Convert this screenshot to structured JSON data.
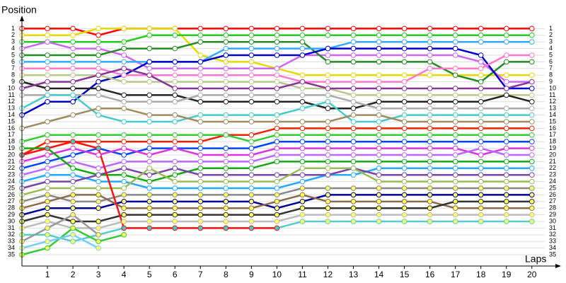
{
  "chart_data": {
    "type": "line",
    "y_label": "Position",
    "x_label": "Laps",
    "x": [
      0,
      1,
      2,
      3,
      4,
      5,
      6,
      7,
      8,
      9,
      10,
      11,
      12,
      13,
      14,
      15,
      16,
      17,
      18,
      19,
      20
    ],
    "xlim": [
      0,
      20.7
    ],
    "xticks": [
      1,
      2,
      3,
      4,
      5,
      6,
      7,
      8,
      9,
      10,
      11,
      12,
      13,
      14,
      15,
      16,
      17,
      18,
      19,
      20
    ],
    "ylim": [
      0,
      36.7
    ],
    "inverted": true,
    "grid": true,
    "yticks": [
      1,
      2,
      3,
      4,
      5,
      6,
      7,
      8,
      9,
      10,
      11,
      12,
      13,
      14,
      15,
      16,
      17,
      18,
      19,
      20,
      21,
      22,
      23,
      24,
      25,
      26,
      27,
      28,
      29,
      30,
      31,
      32,
      33,
      34,
      35
    ],
    "series": [
      {
        "color": "#ff0000",
        "values": [
          1,
          1,
          1,
          2,
          1,
          1,
          1,
          1,
          1,
          1,
          1,
          1,
          1,
          1,
          1,
          1,
          1,
          1,
          1,
          1,
          1
        ]
      },
      {
        "color": "#e8d800",
        "values": [
          2,
          2,
          2,
          1,
          1,
          1,
          1,
          5,
          6,
          6,
          7,
          8,
          8,
          8,
          8,
          8,
          8,
          8,
          8,
          8,
          8
        ]
      },
      {
        "color": "#22cc22",
        "values": [
          3,
          3,
          3,
          3,
          3,
          2,
          2,
          2,
          2,
          2,
          2,
          2,
          2,
          2,
          2,
          2,
          2,
          2,
          2,
          2,
          2
        ]
      },
      {
        "color": "#cc66ee",
        "values": [
          4,
          3,
          4,
          4,
          5,
          7,
          7,
          7,
          7,
          7,
          7,
          5,
          5,
          5,
          5,
          5,
          5,
          5,
          6,
          9,
          9
        ]
      },
      {
        "color": "#228b22",
        "values": [
          5,
          5,
          5,
          5,
          4,
          4,
          4,
          3,
          3,
          3,
          3,
          3,
          6,
          6,
          6,
          6,
          6,
          8,
          9,
          6,
          6
        ]
      },
      {
        "color": "#33aaff",
        "values": [
          6,
          6,
          6,
          6,
          6,
          6,
          6,
          6,
          4,
          4,
          4,
          4,
          4,
          3,
          3,
          3,
          3,
          3,
          3,
          3,
          3
        ]
      },
      {
        "color": "#0000cc",
        "values": [
          14,
          12,
          12,
          9,
          8,
          6,
          6,
          6,
          5,
          5,
          5,
          5,
          4,
          4,
          4,
          4,
          4,
          4,
          5,
          10,
          10
        ]
      },
      {
        "color": "#ff77cc",
        "values": [
          7,
          7,
          7,
          7,
          8,
          8,
          8,
          8,
          8,
          8,
          8,
          9,
          9,
          9,
          9,
          9,
          7,
          7,
          7,
          5,
          5
        ]
      },
      {
        "color": "#b8c88a",
        "values": [
          8,
          8,
          8,
          8,
          9,
          9,
          9,
          9,
          9,
          9,
          9,
          10,
          10,
          11,
          11,
          11,
          11,
          11,
          11,
          11,
          11
        ]
      },
      {
        "color": "#222222",
        "values": [
          9,
          10,
          10,
          10,
          11,
          11,
          11,
          12,
          12,
          12,
          12,
          12,
          13,
          13,
          12,
          12,
          12,
          12,
          12,
          11,
          12
        ]
      },
      {
        "color": "#883399",
        "values": [
          10,
          9,
          9,
          8,
          7,
          8,
          10,
          10,
          10,
          10,
          10,
          9,
          10,
          10,
          10,
          10,
          10,
          10,
          10,
          10,
          9
        ]
      },
      {
        "color": "#aaaaaa",
        "values": [
          11,
          11,
          11,
          11,
          12,
          12,
          12,
          11,
          11,
          11,
          11,
          11,
          11,
          12,
          13,
          13,
          13,
          13,
          13,
          13,
          13
        ]
      },
      {
        "color": "#44cccc",
        "values": [
          13,
          11,
          11,
          14,
          15,
          15,
          15,
          14,
          14,
          14,
          14,
          13,
          12,
          15,
          15,
          14,
          14,
          14,
          14,
          14,
          14
        ]
      },
      {
        "color": "#a08a60",
        "values": [
          16,
          15,
          14,
          13,
          13,
          14,
          14,
          15,
          15,
          15,
          15,
          15,
          15,
          14,
          14,
          15,
          15,
          15,
          15,
          15,
          15
        ]
      },
      {
        "color": "#ee2200",
        "values": [
          20,
          18,
          18,
          18,
          18,
          18,
          18,
          18,
          17,
          17,
          16,
          16,
          16,
          16,
          16,
          16,
          16,
          16,
          16,
          16,
          16
        ]
      },
      {
        "color": "#33cc33",
        "values": [
          18,
          17,
          17,
          17,
          17,
          17,
          17,
          17,
          17,
          18,
          17,
          17,
          17,
          17,
          17,
          17,
          17,
          17,
          17,
          17,
          17
        ]
      },
      {
        "color": "#0044ff",
        "values": [
          22,
          21,
          20,
          19,
          20,
          19,
          19,
          19,
          19,
          19,
          18,
          18,
          18,
          18,
          18,
          18,
          18,
          18,
          18,
          18,
          18
        ]
      },
      {
        "color": "#dd33dd",
        "values": [
          21,
          20,
          19,
          20,
          19,
          20,
          19,
          20,
          20,
          20,
          19,
          19,
          19,
          19,
          19,
          19,
          19,
          19,
          20,
          19,
          19
        ]
      },
      {
        "color": "#bb66ff",
        "values": [
          23,
          22,
          21,
          22,
          21,
          21,
          21,
          21,
          21,
          21,
          20,
          20,
          20,
          20,
          20,
          20,
          20,
          20,
          19,
          20,
          20
        ]
      },
      {
        "color": "#11aa11",
        "values": [
          19,
          19,
          22,
          23,
          23,
          24,
          23,
          22,
          22,
          22,
          21,
          21,
          21,
          21,
          21,
          21,
          21,
          21,
          21,
          21,
          21
        ]
      },
      {
        "color": "#22aaff",
        "values": [
          24,
          23,
          23,
          24,
          24,
          25,
          25,
          25,
          25,
          25,
          25,
          24,
          23,
          23,
          22,
          22,
          22,
          22,
          22,
          22,
          22
        ]
      },
      {
        "color": "#7744aa",
        "values": [
          25,
          24,
          24,
          23,
          22,
          23,
          22,
          23,
          23,
          23,
          23,
          23,
          23,
          22,
          23,
          23,
          23,
          23,
          23,
          23,
          23
        ]
      },
      {
        "color": "#99bb55",
        "values": [
          26,
          25,
          25,
          25,
          25,
          22,
          24,
          24,
          24,
          24,
          24,
          22,
          22,
          22,
          24,
          24,
          24,
          24,
          24,
          24,
          24
        ]
      },
      {
        "color": "#888888",
        "values": [
          27,
          26,
          27,
          27,
          26,
          26,
          26,
          26,
          26,
          26,
          26,
          25,
          25,
          25,
          25,
          25,
          25,
          25,
          25,
          25,
          25
        ],
        "marker_fill": "#ffff66"
      },
      {
        "color": "#000099",
        "values": [
          29,
          28,
          28,
          28,
          27,
          27,
          27,
          27,
          27,
          27,
          28,
          27,
          26,
          26,
          26,
          26,
          26,
          26,
          26,
          26,
          26
        ],
        "marker_fill": "#ffff66"
      },
      {
        "color": "#8b6b4b",
        "values": [
          28,
          27,
          26,
          26,
          28,
          28,
          28,
          28,
          28,
          28,
          27,
          26,
          27,
          27,
          27,
          27,
          27,
          28,
          28,
          28,
          28
        ],
        "marker_fill": "#ffff66"
      },
      {
        "color": "#333333",
        "values": [
          30,
          29,
          30,
          30,
          29,
          29,
          29,
          29,
          29,
          29,
          29,
          28,
          28,
          28,
          28,
          28,
          28,
          27,
          27,
          27,
          27
        ],
        "marker_fill": "#ffff66"
      },
      {
        "color": "#bbbbbb",
        "values": [
          31,
          30,
          31,
          31,
          30,
          30,
          30,
          30,
          30,
          30,
          30,
          29,
          29,
          29,
          29,
          29,
          29,
          29,
          29,
          29,
          29
        ],
        "marker_fill": "#ffff66"
      },
      {
        "color": "#55cccc",
        "values": [
          32,
          32,
          33,
          32,
          31,
          31,
          31,
          31,
          31,
          31,
          31,
          30,
          30,
          30,
          30,
          30,
          30,
          30,
          30,
          30,
          30
        ],
        "marker_fill": "#ffff66"
      },
      {
        "color": "#ff1111",
        "values": [
          20,
          19,
          18,
          19,
          31,
          31,
          31,
          31,
          31,
          31,
          31,
          null,
          null,
          null,
          null,
          null,
          null,
          null,
          null,
          null,
          null
        ],
        "marker_fill": "#44cccc"
      },
      {
        "color": "#33cc33",
        "values": [
          35,
          34,
          31,
          33,
          32,
          null,
          null,
          null,
          null,
          null,
          null,
          null,
          null,
          null,
          null,
          null,
          null,
          null,
          null,
          null,
          null
        ],
        "marker_fill": "#ffff66"
      },
      {
        "color": "#77ccff",
        "values": [
          34,
          33,
          32,
          34,
          null,
          null,
          null,
          null,
          null,
          null,
          null,
          null,
          null,
          null,
          null,
          null,
          null,
          null,
          null,
          null,
          null
        ],
        "marker_fill": "#ffff66"
      },
      {
        "color": "#999999",
        "values": [
          33,
          31,
          29,
          32,
          null,
          null,
          null,
          null,
          null,
          null,
          null,
          null,
          null,
          null,
          null,
          null,
          null,
          null,
          null,
          null,
          null
        ],
        "marker_fill": "#ffff66"
      }
    ]
  }
}
